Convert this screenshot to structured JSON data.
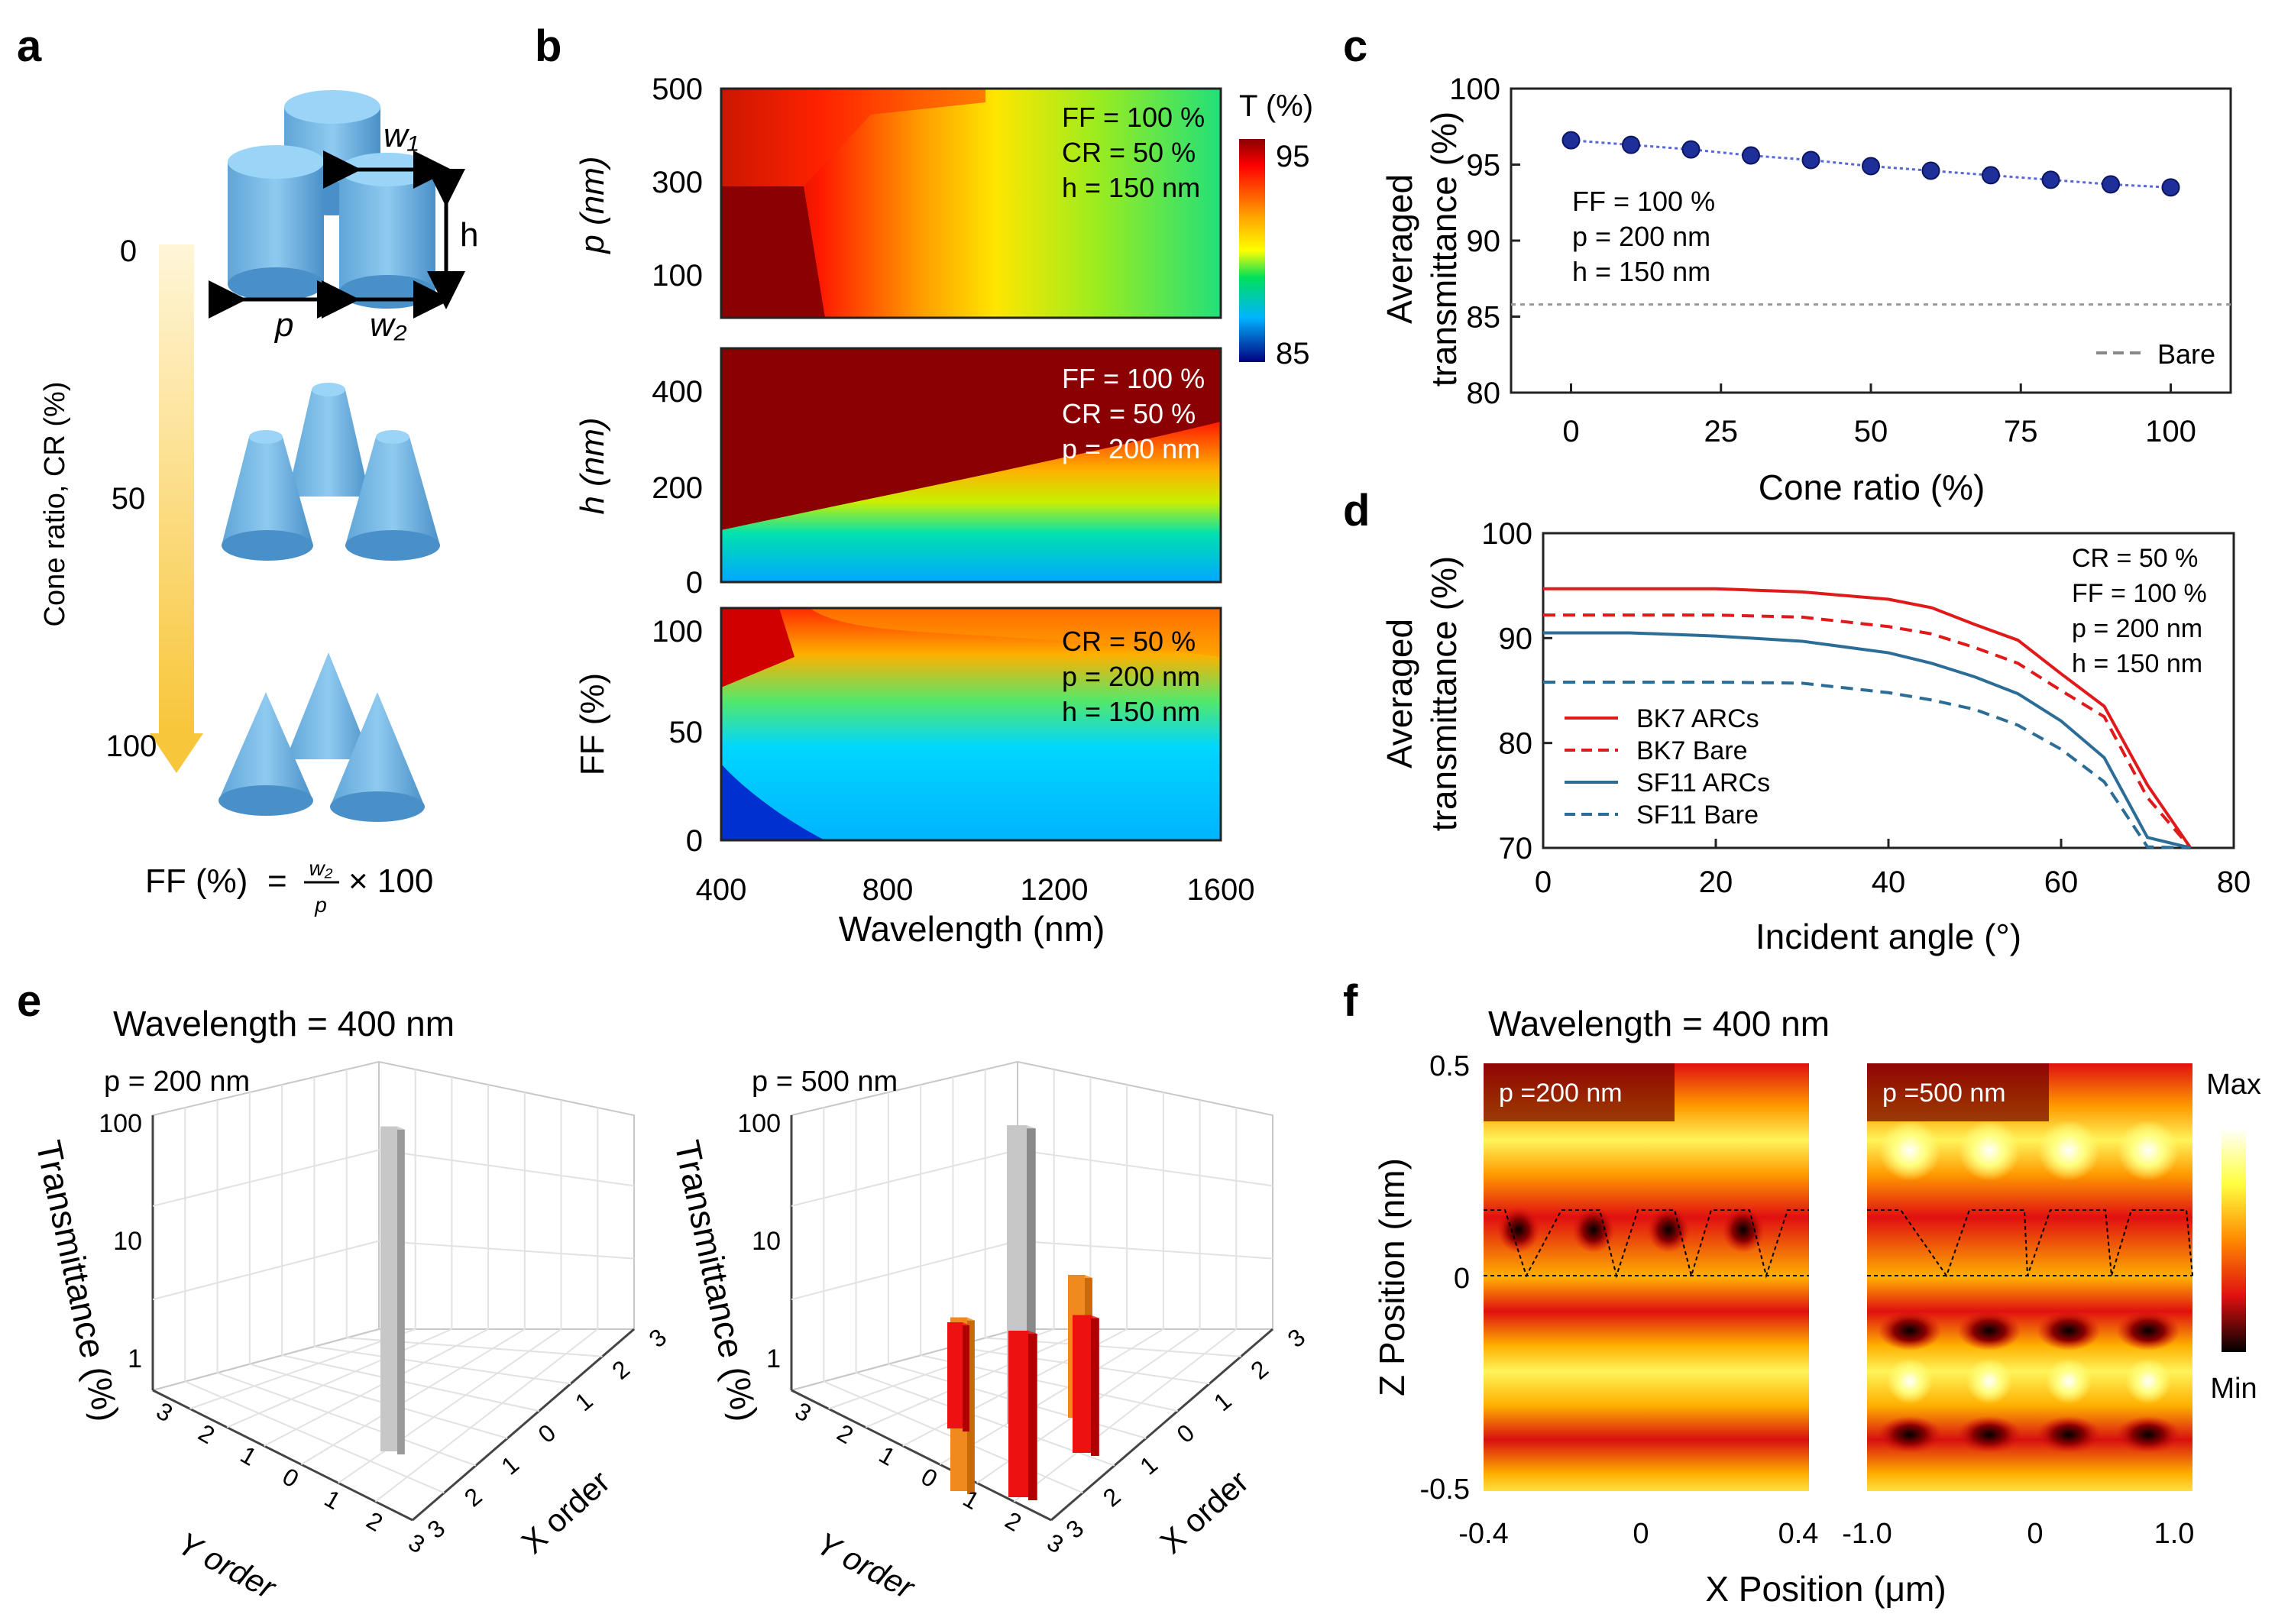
{
  "figure": {
    "panel_labels": [
      "a",
      "b",
      "c",
      "d",
      "e",
      "f"
    ],
    "colors": {
      "axis": "#222222",
      "blue_structure": "#7fbfe6",
      "c_marker": "#1f2f9a",
      "bk7": "#e01a1a",
      "sf11": "#2b6d96",
      "gray_bar": "#bdbdbd",
      "orange_bar": "#f08a1e",
      "red_bar": "#ee1111"
    }
  },
  "panel_a": {
    "arrow_label": "Cone ratio, CR (%)",
    "ticks": [
      "0",
      "50",
      "100"
    ],
    "dim_labels": {
      "w1": "w₁",
      "w2": "w₂",
      "h": "h",
      "p": "p"
    },
    "formula": {
      "prefix": "FF (%)",
      "eq": "=",
      "num": "w₂",
      "den": "p",
      "suffix": "× 100"
    }
  },
  "panel_b": {
    "xlabel": "Wavelength (nm)",
    "xticks": [
      "400",
      "800",
      "1200",
      "1600"
    ],
    "colorbar": {
      "title": "T (%)",
      "max": "95",
      "min": "85"
    },
    "subplots": [
      {
        "ylabel": "p (nm)",
        "yticks": [
          "500",
          "300",
          "100"
        ],
        "annot": [
          "FF = 100 %",
          "CR = 50 %",
          "h = 150 nm"
        ]
      },
      {
        "ylabel": "h (nm)",
        "yticks": [
          "400",
          "200",
          "0"
        ],
        "annot": [
          "FF = 100 %",
          "CR = 50 %",
          "p = 200 nm"
        ]
      },
      {
        "ylabel": "FF (%)",
        "yticks": [
          "100",
          "50",
          "0"
        ],
        "annot": [
          "CR = 50 %",
          "p = 200 nm",
          "h = 150 nm"
        ]
      }
    ]
  },
  "panel_e": {
    "title": "Wavelength = 400 nm",
    "subplots": [
      {
        "label": "p = 200 nm"
      },
      {
        "label": "p = 500 nm"
      }
    ],
    "zlabel": "Transmittance (%)",
    "ylabel": "Y order",
    "xlabel": "X order",
    "zticks": [
      "100",
      "10",
      "1"
    ],
    "order_ticks": [
      "3",
      "2",
      "1",
      "0",
      "1",
      "2",
      "3"
    ]
  },
  "panel_f": {
    "title": "Wavelength = 400 nm",
    "ylabel": "Z Position  (nm)",
    "xlabel": "X Position (μm)",
    "yticks": [
      "0.5",
      "0",
      "-0.5"
    ],
    "left": {
      "label": "p =200 nm",
      "xticks": [
        "-0.4",
        "0",
        "0.4"
      ]
    },
    "right": {
      "label": "p =500 nm",
      "xticks": [
        "-1.0",
        "0",
        "1.0"
      ]
    },
    "colorbar": {
      "max": "Max",
      "min": "Min"
    }
  },
  "chart_data": [
    {
      "type": "scatter",
      "panel": "c",
      "x": [
        0,
        10,
        20,
        30,
        40,
        50,
        60,
        70,
        80,
        90,
        100
      ],
      "values": [
        96.6,
        96.3,
        96.0,
        95.6,
        95.3,
        94.9,
        94.6,
        94.3,
        94.0,
        93.7,
        93.5
      ],
      "reference": {
        "name": "Bare",
        "value": 85.8
      },
      "xlabel": "Cone ratio (%)",
      "ylabel": "Averaged transmittance (%)",
      "xlim": [
        -10,
        110
      ],
      "ylim": [
        80,
        100
      ],
      "xticks": [
        0,
        25,
        50,
        75,
        100
      ],
      "yticks": [
        80,
        85,
        90,
        95,
        100
      ],
      "annotations": [
        "FF = 100 %",
        "p = 200 nm",
        "h = 150 nm"
      ],
      "legend": [
        "Bare"
      ]
    },
    {
      "type": "line",
      "panel": "d",
      "x": [
        0,
        10,
        20,
        30,
        40,
        45,
        50,
        55,
        60,
        65,
        70,
        75
      ],
      "series": [
        {
          "name": "BK7 ARCs",
          "style": "solid",
          "values": [
            94.7,
            94.7,
            94.7,
            94.4,
            93.7,
            92.9,
            91.3,
            89.8,
            86.6,
            83.5,
            76.0,
            70.0
          ]
        },
        {
          "name": "BK7 Bare",
          "style": "dashed",
          "values": [
            92.2,
            92.2,
            92.2,
            92.0,
            91.1,
            90.4,
            89.1,
            87.6,
            85.0,
            82.5,
            74.8,
            70.0
          ]
        },
        {
          "name": "SF11 ARCs",
          "style": "solid",
          "values": [
            90.5,
            90.5,
            90.2,
            89.7,
            88.6,
            87.6,
            86.3,
            84.7,
            82.1,
            78.6,
            71.0,
            70.0
          ]
        },
        {
          "name": "SF11 Bare",
          "style": "dashed",
          "values": [
            85.8,
            85.8,
            85.8,
            85.7,
            84.8,
            84.1,
            83.2,
            81.7,
            79.4,
            76.3,
            70.1,
            70.0
          ]
        }
      ],
      "xlabel": "Incident angle (°)",
      "ylabel": "Averaged transmittance (%)",
      "xlim": [
        0,
        80
      ],
      "ylim": [
        70,
        100
      ],
      "xticks": [
        0,
        20,
        40,
        60,
        80
      ],
      "yticks": [
        70,
        80,
        90,
        100
      ],
      "annotations": [
        "CR = 50 %",
        "FF = 100 %",
        "p = 200 nm",
        "h = 150 nm"
      ]
    },
    {
      "type": "bar",
      "panel": "e",
      "categories": [
        "p = 200 nm (0,0)",
        "p = 500 nm (0,0)"
      ],
      "values": [
        88,
        90
      ],
      "zlim": [
        0.3,
        100
      ],
      "zscale": "log"
    }
  ]
}
